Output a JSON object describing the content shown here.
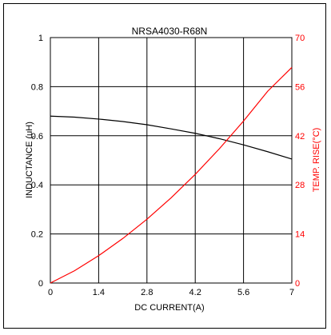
{
  "chart_data": {
    "type": "line",
    "title": "NRSA4030-R68N",
    "xlabel": "DC CURRENT(A)",
    "ylabel": "INDUCTANCE (uH)",
    "ylabel_right": "TEMP. RISE(°C)",
    "xlim": [
      0,
      7
    ],
    "ylim": [
      0,
      1
    ],
    "ylim_right": [
      0,
      70
    ],
    "x_ticks": [
      "0",
      "1.4",
      "2.8",
      "4.2",
      "5.6",
      "7"
    ],
    "y_ticks": [
      "0",
      "0.2",
      "0.4",
      "0.6",
      "0.8",
      "1"
    ],
    "y_ticks_right": [
      "0",
      "14",
      "28",
      "42",
      "56",
      "70"
    ],
    "grid": true,
    "colors": {
      "inductance": "#000000",
      "temp": "#ff0000"
    },
    "series": [
      {
        "axis": "left",
        "x": [
          0,
          0.7,
          1.4,
          2.1,
          2.8,
          3.5,
          4.2,
          4.9,
          5.6,
          6.3,
          7
        ],
        "values": [
          0.68,
          0.676,
          0.668,
          0.658,
          0.645,
          0.628,
          0.61,
          0.588,
          0.563,
          0.535,
          0.505
        ]
      },
      {
        "axis": "right",
        "x": [
          0,
          0.7,
          1.4,
          2.1,
          2.8,
          3.5,
          4.2,
          4.9,
          5.6,
          6.3,
          7
        ],
        "values": [
          0,
          3.5,
          7.8,
          12.7,
          18.2,
          24.3,
          31,
          38.3,
          46.2,
          54.7,
          61.5
        ]
      }
    ]
  }
}
